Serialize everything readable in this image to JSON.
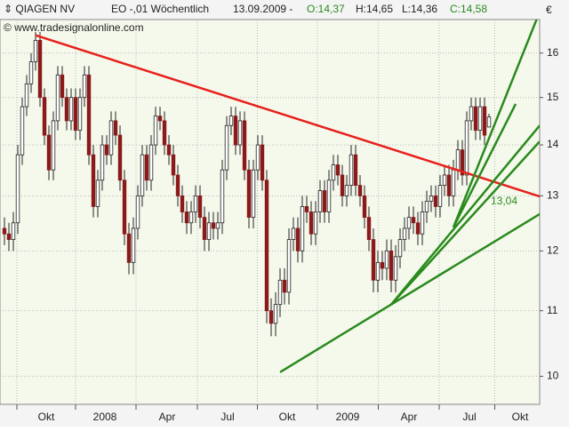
{
  "chart_data": {
    "type": "candlestick",
    "header": {
      "name": "QIAGEN NV",
      "instrument": "EO -,01 Wöchentlich",
      "date": "13.09.2009 -",
      "open": "O:14,37",
      "high": "H:14,65",
      "low": "L:14,36",
      "close": "C:14,58"
    },
    "source": "© www.tradesignalonline.com",
    "currency": "€",
    "annotation": "13,04",
    "log_scale": true,
    "grid": true,
    "up_color": "#ffffff",
    "down_color": "#8b1a1a",
    "ylim": [
      9.6,
      16.8
    ],
    "yticks": [
      10,
      11,
      12,
      13,
      14,
      15,
      16
    ],
    "xlim": [
      -1,
      120.4
    ],
    "xticks": [
      {
        "value": 9.4,
        "label": "Okt"
      },
      {
        "value": 22.6,
        "label": "2008"
      },
      {
        "value": 36.6,
        "label": "Apr"
      },
      {
        "value": 50.2,
        "label": "Jul"
      },
      {
        "value": 63.6,
        "label": "Okt"
      },
      {
        "value": 77.2,
        "label": "2009"
      },
      {
        "value": 91,
        "label": "Apr"
      },
      {
        "value": 104.6,
        "label": "Jul"
      },
      {
        "value": 116,
        "label": "Okt"
      }
    ],
    "open": [
      12.4,
      12.3,
      12.2,
      12.5,
      13.8,
      14.8,
      15.3,
      15.8,
      16.3,
      15.0,
      14.2,
      13.5,
      14.5,
      15.5,
      15.0,
      14.5,
      15.0,
      14.3,
      15.0,
      15.5,
      13.8,
      12.8,
      13.3,
      14.0,
      13.8,
      14.5,
      14.2,
      13.3,
      12.3,
      11.8,
      12.4,
      13.0,
      13.8,
      13.3,
      14.0,
      14.6,
      14.5,
      14.0,
      13.8,
      13.4,
      13.0,
      12.7,
      12.5,
      12.7,
      13.0,
      12.6,
      12.2,
      12.5,
      12.4,
      12.5,
      13.5,
      14.4,
      14.6,
      14.0,
      14.5,
      13.5,
      12.6,
      13.5,
      14.0,
      13.3,
      11.0,
      10.8,
      11.1,
      11.5,
      11.3,
      12.2,
      12.4,
      12.0,
      12.8,
      12.7,
      12.3,
      12.7,
      13.1,
      12.7,
      13.3,
      13.6,
      13.4,
      13.0,
      13.2,
      13.8,
      13.2,
      13.0,
      12.6,
      12.2,
      11.5,
      11.8,
      11.7,
      12.0,
      11.5,
      11.9,
      12.2,
      12.4,
      12.6,
      12.5,
      12.3,
      12.7,
      12.9,
      13.0,
      12.8,
      13.2,
      13.4,
      13.0,
      13.5,
      13.9,
      13.4,
      14.5,
      14.8,
      14.3,
      14.8,
      14.37
    ],
    "high": [
      12.6,
      12.5,
      12.7,
      14.0,
      15.0,
      15.5,
      16.0,
      16.5,
      16.5,
      15.2,
      14.4,
      14.7,
      15.7,
      15.7,
      15.2,
      15.2,
      15.2,
      15.2,
      15.7,
      15.7,
      14.0,
      13.5,
      14.2,
      14.2,
      14.7,
      14.7,
      14.4,
      13.5,
      12.5,
      12.6,
      13.2,
      14.0,
      14.0,
      14.2,
      14.8,
      14.8,
      14.7,
      14.2,
      14.0,
      13.6,
      13.2,
      12.9,
      12.9,
      13.2,
      13.2,
      12.8,
      12.7,
      12.7,
      12.7,
      13.7,
      14.6,
      14.8,
      14.8,
      14.7,
      14.7,
      13.7,
      13.7,
      14.2,
      14.2,
      13.5,
      11.2,
      11.3,
      11.7,
      11.7,
      12.4,
      12.6,
      12.6,
      13.0,
      13.0,
      12.9,
      12.9,
      13.3,
      13.3,
      13.5,
      13.8,
      13.8,
      13.6,
      13.4,
      14.0,
      14.0,
      13.4,
      13.2,
      12.8,
      12.4,
      12.0,
      12.0,
      12.2,
      12.2,
      12.1,
      12.4,
      12.6,
      12.8,
      12.8,
      12.7,
      12.9,
      13.1,
      13.2,
      13.2,
      13.4,
      13.6,
      13.6,
      13.7,
      14.1,
      14.1,
      14.7,
      15.0,
      15.0,
      15.0,
      15.0,
      14.65
    ],
    "low": [
      12.1,
      12.0,
      12.0,
      12.3,
      13.6,
      14.6,
      15.1,
      15.6,
      14.8,
      14.0,
      13.3,
      13.3,
      14.3,
      14.8,
      14.3,
      14.3,
      14.1,
      14.1,
      14.8,
      13.6,
      12.6,
      12.6,
      13.1,
      13.6,
      13.6,
      14.0,
      13.1,
      12.1,
      11.6,
      11.6,
      12.2,
      12.8,
      13.1,
      13.1,
      13.8,
      14.3,
      13.8,
      13.6,
      13.2,
      12.8,
      12.5,
      12.3,
      12.3,
      12.5,
      12.4,
      12.0,
      12.0,
      12.2,
      12.2,
      12.3,
      13.3,
      14.2,
      13.8,
      13.8,
      13.3,
      12.4,
      12.4,
      13.3,
      13.1,
      10.8,
      10.6,
      10.6,
      10.9,
      11.1,
      11.1,
      12.0,
      11.8,
      11.8,
      12.5,
      12.1,
      12.1,
      12.5,
      12.5,
      12.5,
      13.1,
      13.2,
      12.8,
      12.8,
      13.0,
      13.0,
      12.8,
      12.4,
      12.0,
      11.3,
      11.3,
      11.5,
      11.5,
      11.3,
      11.3,
      11.7,
      12.0,
      12.2,
      12.3,
      12.1,
      12.1,
      12.5,
      12.7,
      12.6,
      12.6,
      13.0,
      12.8,
      12.8,
      13.3,
      13.2,
      13.2,
      14.3,
      14.1,
      14.1,
      14.0,
      14.36
    ],
    "close": [
      12.3,
      12.2,
      12.5,
      13.8,
      14.8,
      15.3,
      15.8,
      16.3,
      15.0,
      14.2,
      13.5,
      14.5,
      15.5,
      15.0,
      14.5,
      15.0,
      14.3,
      15.0,
      15.5,
      13.8,
      12.8,
      13.3,
      14.0,
      13.8,
      14.5,
      14.2,
      13.3,
      12.3,
      11.8,
      12.4,
      13.0,
      13.8,
      13.3,
      14.0,
      14.6,
      14.5,
      14.0,
      13.8,
      13.4,
      13.0,
      12.7,
      12.5,
      12.7,
      13.0,
      12.6,
      12.2,
      12.5,
      12.4,
      12.5,
      13.5,
      14.4,
      14.6,
      14.0,
      14.5,
      13.5,
      12.6,
      13.5,
      14.0,
      13.3,
      11.0,
      10.8,
      11.1,
      11.5,
      11.3,
      12.2,
      12.4,
      12.0,
      12.8,
      12.7,
      12.3,
      12.7,
      13.1,
      12.7,
      13.3,
      13.6,
      13.4,
      13.0,
      13.2,
      13.8,
      13.2,
      13.0,
      12.6,
      12.2,
      11.5,
      11.8,
      11.7,
      12.0,
      11.5,
      11.9,
      12.2,
      12.4,
      12.6,
      12.5,
      12.3,
      12.7,
      12.9,
      13.0,
      12.8,
      13.2,
      13.4,
      13.0,
      13.5,
      13.9,
      13.4,
      14.5,
      14.8,
      14.3,
      14.8,
      14.2,
      14.58
    ],
    "trendlines": [
      {
        "color": "#e8201c",
        "x0": 7,
        "y0": 16.42,
        "x1": 120.4,
        "y1": 12.99
      },
      {
        "color": "#2a8a1e",
        "x0": 62,
        "y0": 10.06,
        "x1": 120.4,
        "y1": 12.66
      },
      {
        "color": "#2a8a1e",
        "x0": 87,
        "y0": 11.1,
        "x1": 120.4,
        "y1": 14.4
      },
      {
        "color": "#2a8a1e",
        "x0": 87,
        "y0": 11.1,
        "x1": 120.4,
        "y1": 14.07
      },
      {
        "color": "#2a8a1e",
        "x0": 101,
        "y0": 12.42,
        "x1": 120.4,
        "y1": 16.99
      },
      {
        "color": "#2a8a1e",
        "x0": 101,
        "y0": 12.42,
        "x1": 115,
        "y1": 14.86
      }
    ]
  }
}
